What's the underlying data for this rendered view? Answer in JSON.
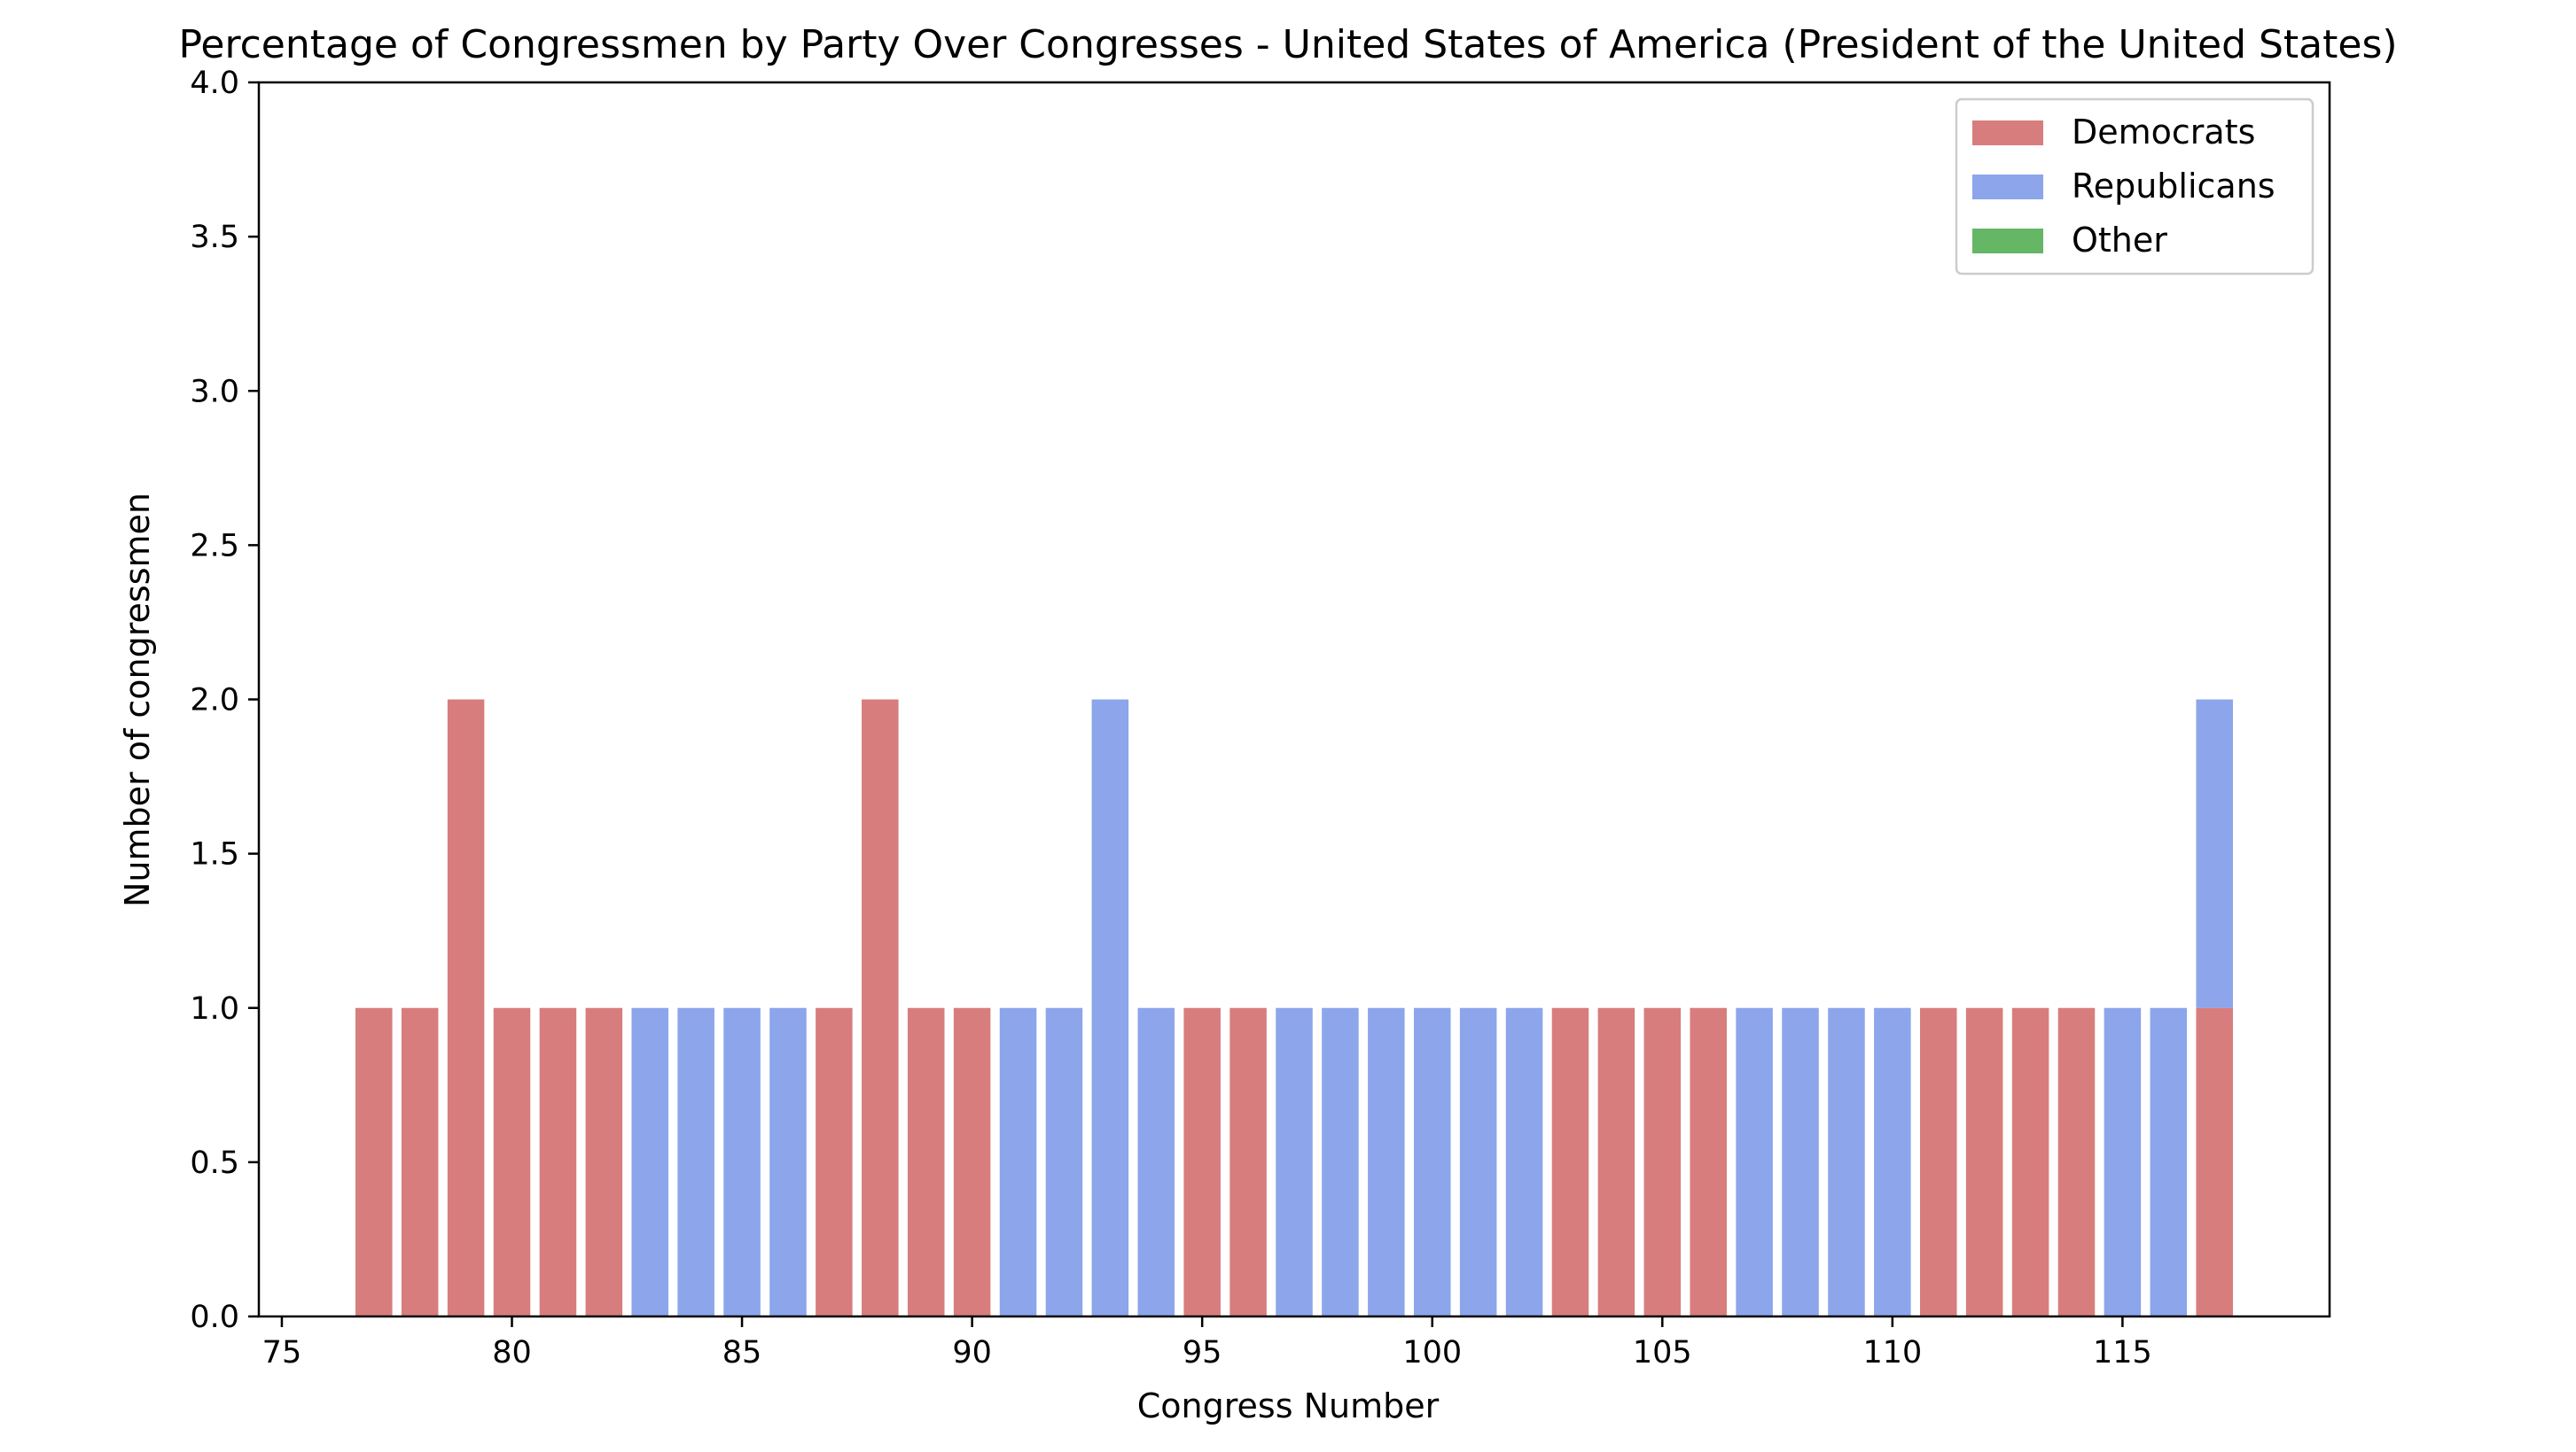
{
  "chart_data": {
    "type": "bar",
    "title": "Percentage of Congressmen by Party Over Congresses - United States of America (President of the United States)",
    "xlabel": "Congress Number",
    "ylabel": "Number of congressmen",
    "xlim": [
      74.5,
      119.5
    ],
    "ylim": [
      0,
      4
    ],
    "stacked": true,
    "grid": false,
    "legend_position": "upper right",
    "x_ticks": [
      75,
      80,
      85,
      90,
      95,
      100,
      105,
      110,
      115
    ],
    "y_ticks": [
      0.0,
      0.5,
      1.0,
      1.5,
      2.0,
      2.5,
      3.0,
      3.5,
      4.0
    ],
    "x_tick_labels": [
      "75",
      "80",
      "85",
      "90",
      "95",
      "100",
      "105",
      "110",
      "115"
    ],
    "y_tick_labels": [
      "0.0",
      "0.5",
      "1.0",
      "1.5",
      "2.0",
      "2.5",
      "3.0",
      "3.5",
      "4.0"
    ],
    "x": [
      77,
      78,
      79,
      80,
      81,
      82,
      83,
      84,
      85,
      86,
      87,
      88,
      89,
      90,
      91,
      92,
      93,
      94,
      95,
      96,
      97,
      98,
      99,
      100,
      101,
      102,
      103,
      104,
      105,
      106,
      107,
      108,
      109,
      110,
      111,
      112,
      113,
      114,
      115,
      116,
      117
    ],
    "series": [
      {
        "name": "Democrats",
        "color": "#cd5c5c",
        "values": [
          1,
          1,
          2,
          1,
          1,
          1,
          0,
          0,
          0,
          0,
          1,
          2,
          1,
          1,
          0,
          0,
          0,
          0,
          1,
          1,
          0,
          0,
          0,
          0,
          0,
          0,
          1,
          1,
          1,
          1,
          0,
          0,
          0,
          0,
          1,
          1,
          1,
          1,
          0,
          0,
          1
        ]
      },
      {
        "name": "Republicans",
        "color": "#6f8fe6",
        "values": [
          0,
          0,
          0,
          0,
          0,
          0,
          1,
          1,
          1,
          1,
          0,
          0,
          0,
          0,
          1,
          1,
          2,
          1,
          0,
          0,
          1,
          1,
          1,
          1,
          1,
          1,
          0,
          0,
          0,
          0,
          1,
          1,
          1,
          1,
          0,
          0,
          0,
          0,
          1,
          1,
          1
        ]
      },
      {
        "name": "Other",
        "color": "#3ea43e",
        "values": [
          0,
          0,
          0,
          0,
          0,
          0,
          0,
          0,
          0,
          0,
          0,
          0,
          0,
          0,
          0,
          0,
          0,
          0,
          0,
          0,
          0,
          0,
          0,
          0,
          0,
          0,
          0,
          0,
          0,
          0,
          0,
          0,
          0,
          0,
          0,
          0,
          0,
          0,
          0,
          0,
          0
        ]
      }
    ]
  }
}
